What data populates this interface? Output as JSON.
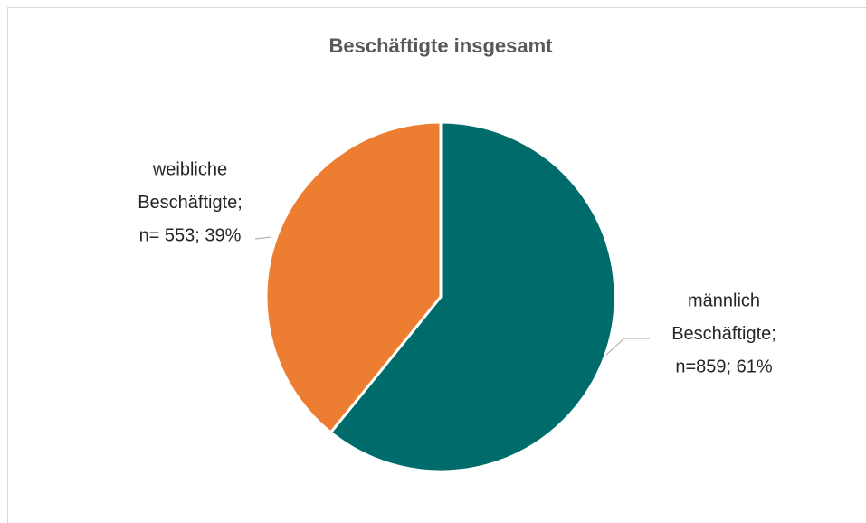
{
  "chart_data": {
    "type": "pie",
    "title": "Beschäftigte insgesamt",
    "labels": [
      [
        "männlich",
        "Beschäftigte;",
        "n=859; 61%"
      ],
      [
        "weibliche",
        "Beschäftigte;",
        "n= 553; 39%"
      ]
    ],
    "values": [
      859,
      553
    ],
    "colors": [
      "#006b6b",
      "#ed7d31"
    ]
  }
}
